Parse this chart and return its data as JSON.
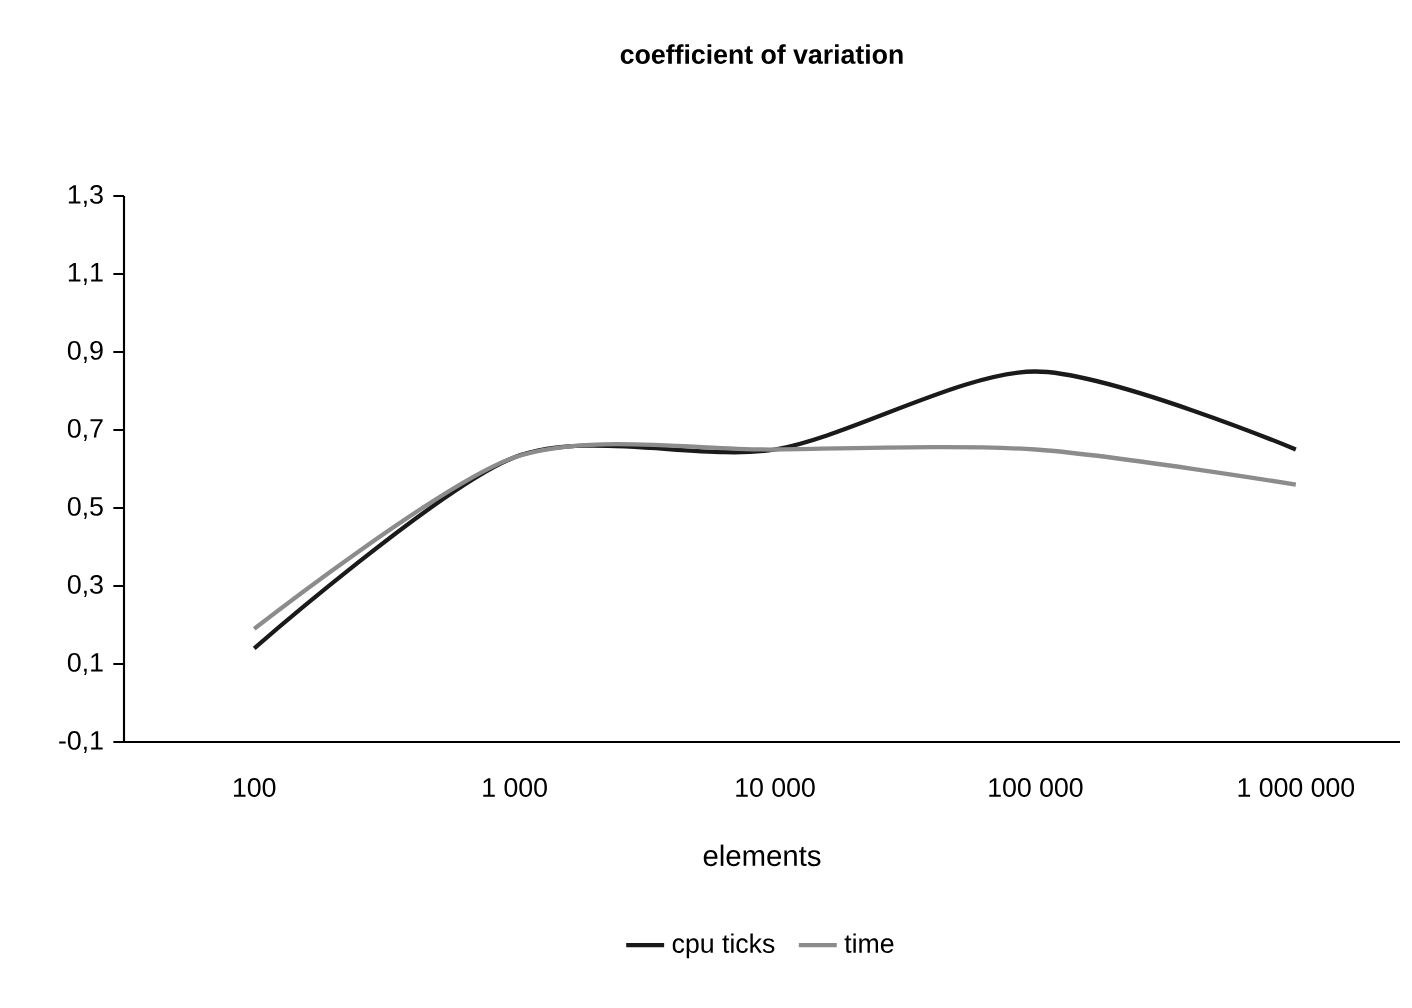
{
  "chart_data": {
    "type": "line",
    "title": "coefficient of variation",
    "xlabel": "elements",
    "categories": [
      "100",
      "1 000",
      "10 000",
      "100 000",
      "1 000 000"
    ],
    "series": [
      {
        "name": "cpu ticks",
        "color": "#1a1a1a",
        "values": [
          0.14,
          0.63,
          0.65,
          0.85,
          0.65
        ]
      },
      {
        "name": "time",
        "color": "#8c8c8c",
        "values": [
          0.19,
          0.63,
          0.65,
          0.65,
          0.56
        ]
      }
    ],
    "ylim": [
      -0.1,
      1.3
    ],
    "yticks": [
      {
        "value": -0.1,
        "label": "-0,1"
      },
      {
        "value": 0.1,
        "label": "0,1"
      },
      {
        "value": 0.3,
        "label": "0,3"
      },
      {
        "value": 0.5,
        "label": "0,5"
      },
      {
        "value": 0.7,
        "label": "0,7"
      },
      {
        "value": 0.9,
        "label": "0,9"
      },
      {
        "value": 1.1,
        "label": "1,1"
      },
      {
        "value": 1.3,
        "label": "1,3"
      }
    ],
    "grid": false,
    "legend": "bottom",
    "marker": "none",
    "line_style": "solid"
  }
}
